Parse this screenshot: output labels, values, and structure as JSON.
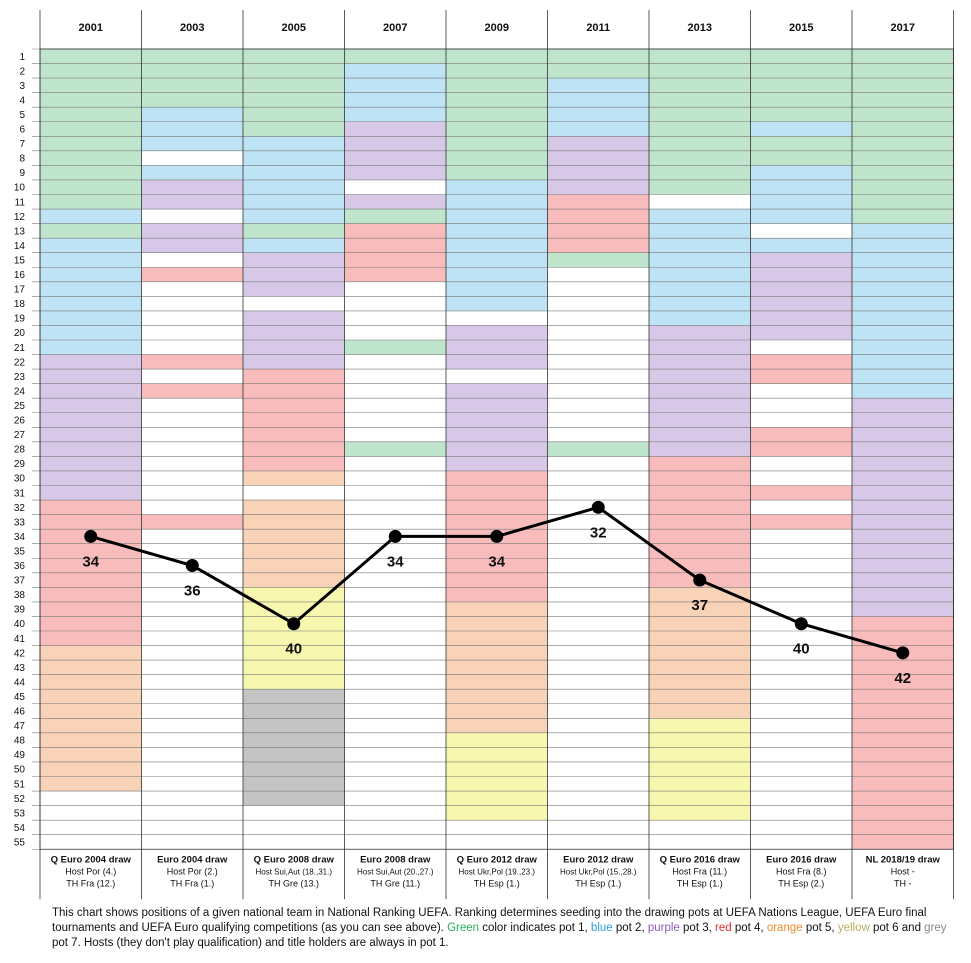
{
  "colors": {
    "pot1": "#bfe6cd",
    "pot2": "#bde3f4",
    "pot3": "#d8c8e8",
    "pot4": "#f8bcbc",
    "pot5": "#f9d3b8",
    "pot6": "#f8f7b0",
    "pot7": "#c4c4c4",
    "line": "#000000"
  },
  "chart_data": {
    "type": "line",
    "categories": [
      "2001",
      "2003",
      "2005",
      "2007",
      "2009",
      "2011",
      "2013",
      "2015",
      "2017"
    ],
    "y_tick_labels": [
      "1",
      "2",
      "3",
      "4",
      "5",
      "6",
      "7",
      "8",
      "9",
      "10",
      "11",
      "12",
      "13",
      "14",
      "15",
      "16",
      "17",
      "18",
      "19",
      "20",
      "21",
      "22",
      "23",
      "24",
      "25",
      "26",
      "27",
      "28",
      "29",
      "30",
      "31",
      "32",
      "33",
      "34",
      "35",
      "36",
      "37",
      "38",
      "39",
      "40",
      "41",
      "42",
      "43",
      "44",
      "45",
      "46",
      "47",
      "48",
      "49",
      "50",
      "51",
      "52",
      "53",
      "54",
      "55"
    ],
    "y_range": [
      1,
      55
    ],
    "y_reversed": true,
    "grid": true,
    "series": [
      {
        "values": [
          34,
          36,
          40,
          34,
          34,
          32,
          37,
          40,
          42
        ]
      }
    ],
    "point_labels": [
      "34",
      "36",
      "40",
      "34",
      "34",
      "32",
      "37",
      "40",
      "42"
    ],
    "pot_bands": [
      [
        [
          1,
          1,
          4
        ],
        [
          1,
          5,
          11
        ],
        [
          1,
          13,
          13
        ],
        [
          2,
          12,
          12
        ],
        [
          2,
          14,
          21
        ],
        [
          3,
          22,
          31
        ],
        [
          4,
          32,
          41
        ],
        [
          5,
          42,
          51
        ]
      ],
      [
        [
          1,
          1,
          4
        ],
        [
          2,
          5,
          7
        ],
        [
          2,
          9,
          9
        ],
        [
          3,
          10,
          11
        ],
        [
          3,
          13,
          14
        ],
        [
          4,
          16,
          16
        ],
        [
          4,
          22,
          22
        ],
        [
          4,
          24,
          24
        ],
        [
          4,
          33,
          33
        ]
      ],
      [
        [
          1,
          1,
          6
        ],
        [
          2,
          7,
          12
        ],
        [
          1,
          13,
          13
        ],
        [
          2,
          14,
          14
        ],
        [
          3,
          15,
          17
        ],
        [
          3,
          19,
          22
        ],
        [
          4,
          23,
          29
        ],
        [
          5,
          30,
          30
        ],
        [
          5,
          32,
          37
        ],
        [
          6,
          38,
          44
        ],
        [
          7,
          45,
          52
        ]
      ],
      [
        [
          1,
          1,
          1
        ],
        [
          2,
          2,
          5
        ],
        [
          3,
          6,
          9
        ],
        [
          3,
          11,
          11
        ],
        [
          1,
          12,
          12
        ],
        [
          4,
          13,
          16
        ],
        [
          1,
          21,
          21
        ],
        [
          1,
          28,
          28
        ]
      ],
      [
        [
          1,
          1,
          9
        ],
        [
          2,
          10,
          18
        ],
        [
          3,
          20,
          22
        ],
        [
          3,
          24,
          29
        ],
        [
          4,
          30,
          38
        ],
        [
          5,
          39,
          47
        ],
        [
          6,
          48,
          53
        ]
      ],
      [
        [
          1,
          1,
          2
        ],
        [
          2,
          3,
          6
        ],
        [
          3,
          7,
          10
        ],
        [
          4,
          11,
          14
        ],
        [
          1,
          15,
          15
        ],
        [
          1,
          28,
          28
        ]
      ],
      [
        [
          1,
          1,
          9
        ],
        [
          1,
          10,
          10
        ],
        [
          2,
          12,
          19
        ],
        [
          3,
          20,
          28
        ],
        [
          4,
          29,
          37
        ],
        [
          5,
          38,
          46
        ],
        [
          6,
          47,
          53
        ]
      ],
      [
        [
          1,
          1,
          5
        ],
        [
          2,
          6,
          6
        ],
        [
          1,
          7,
          7
        ],
        [
          1,
          8,
          8
        ],
        [
          2,
          9,
          12
        ],
        [
          2,
          14,
          14
        ],
        [
          3,
          15,
          19
        ],
        [
          3,
          20,
          20
        ],
        [
          4,
          22,
          23
        ],
        [
          4,
          27,
          28
        ],
        [
          4,
          31,
          31
        ],
        [
          4,
          33,
          33
        ]
      ],
      [
        [
          1,
          1,
          12
        ],
        [
          2,
          13,
          24
        ],
        [
          3,
          25,
          39
        ],
        [
          4,
          40,
          55
        ]
      ]
    ],
    "column_labels": [
      {
        "title": "Q Euro 2004 draw",
        "host": "Host Por (4.)",
        "th": "TH Fra (12.)"
      },
      {
        "title": "Euro 2004 draw",
        "host": "Host Por (2.)",
        "th": "TH Fra (1.)"
      },
      {
        "title": "Q Euro 2008 draw",
        "host": "Host Sui,Aut (18.,31.)",
        "th": "TH Gre (13.)"
      },
      {
        "title": "Euro 2008 draw",
        "host": "Host Sui,Aut (20.,27.)",
        "th": "TH Gre (11.)"
      },
      {
        "title": "Q Euro 2012 draw",
        "host": "Host Ukr,Pol (19.,23.)",
        "th": "TH Esp (1.)"
      },
      {
        "title": "Euro 2012 draw",
        "host": "Host Ukr,Pol (15.,28.)",
        "th": "TH Esp (1.)"
      },
      {
        "title": "Q Euro 2016 draw",
        "host": "Host Fra (11.)",
        "th": "TH Esp (1.)"
      },
      {
        "title": "Euro 2016 draw",
        "host": "Host Fra (8.)",
        "th": "TH Esp (2.)"
      },
      {
        "title": "NL 2018/19 draw",
        "host": "Host -",
        "th": "TH -"
      }
    ]
  },
  "note": {
    "part1": "This chart shows positions of a given national team in National Ranking UEFA. Ranking determines seeding into the drawing pots at UEFA Nations League, UEFA Euro final tournaments and UEFA Euro qualifying competitions (as you can see above).",
    "green": "Green",
    "part2": "color indicates pot 1,",
    "blue": "blue",
    "part3": "pot 2,",
    "purple": "purple",
    "part4": "pot 3,",
    "red": "red",
    "part5": "pot 4,",
    "orange": "orange",
    "part6": "pot 5,",
    "yellow": "yellow",
    "part7": "pot 6 and",
    "grey": "grey",
    "part8": "pot 7. Hosts (they don't play qualification) and title holders are always in pot 1."
  }
}
